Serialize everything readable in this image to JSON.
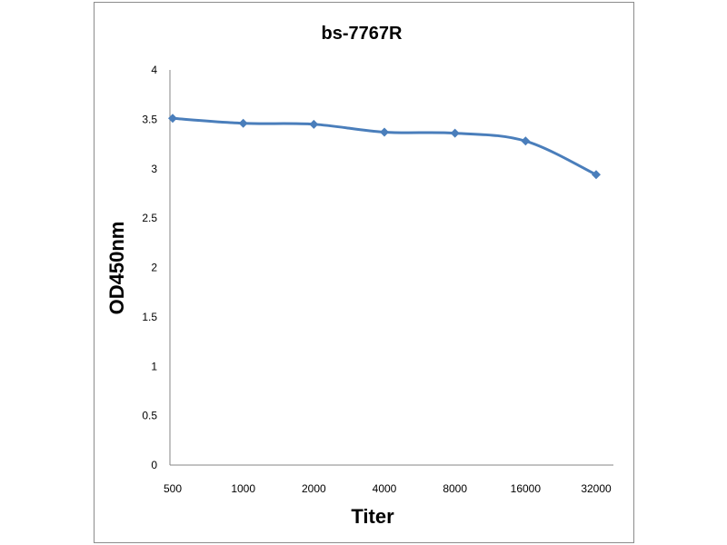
{
  "chart_data": {
    "type": "line",
    "title": "bs-7767R",
    "xlabel": "Titer",
    "ylabel": "OD450nm",
    "categories": [
      "500",
      "1000",
      "2000",
      "4000",
      "8000",
      "16000",
      "32000"
    ],
    "series": [
      {
        "values": [
          3.51,
          3.46,
          3.45,
          3.37,
          3.36,
          3.28,
          2.94
        ],
        "color": "#4a7ebb",
        "marker": "diamond",
        "smooth": true
      }
    ],
    "ylim": [
      0,
      4
    ],
    "yticks": [
      "0",
      "0.5",
      "1",
      "1.5",
      "2",
      "2.5",
      "3",
      "3.5",
      "4"
    ],
    "grid": false,
    "legend": "none"
  }
}
